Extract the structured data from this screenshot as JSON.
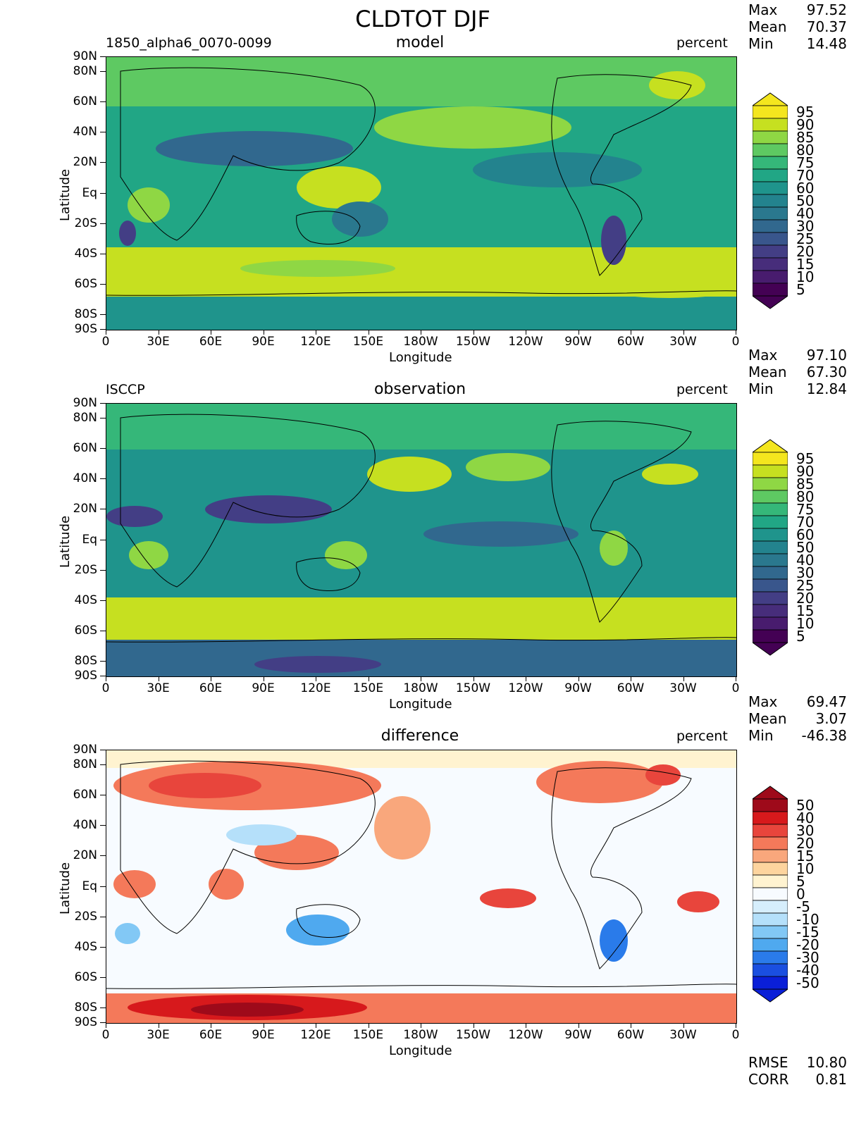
{
  "title": "CLDTOT DJF",
  "axes": {
    "lat_ticks": [
      "90N",
      "80N",
      "60N",
      "40N",
      "20N",
      "Eq",
      "20S",
      "40S",
      "60S",
      "80S",
      "90S"
    ],
    "lon_ticks": [
      "0",
      "30E",
      "60E",
      "90E",
      "120E",
      "150E",
      "180W",
      "150W",
      "120W",
      "90W",
      "60W",
      "30W",
      "0"
    ],
    "xlabel": "Longitude",
    "ylabel": "Latitude"
  },
  "panels": [
    {
      "case": "1850_alpha6_0070-0099",
      "title": "model",
      "units": "percent",
      "stats": {
        "max_label": "Max",
        "max": "97.52",
        "mean_label": "Mean",
        "mean": "70.37",
        "min_label": "Min",
        "min": "14.48"
      },
      "colorbar": [
        "95",
        "90",
        "85",
        "80",
        "75",
        "70",
        "60",
        "50",
        "40",
        "30",
        "25",
        "20",
        "15",
        "10",
        "5"
      ]
    },
    {
      "case": "ISCCP",
      "title": "observation",
      "units": "percent",
      "stats": {
        "max_label": "Max",
        "max": "97.10",
        "mean_label": "Mean",
        "mean": "67.30",
        "min_label": "Min",
        "min": "12.84"
      },
      "colorbar": [
        "95",
        "90",
        "85",
        "80",
        "75",
        "70",
        "60",
        "50",
        "40",
        "30",
        "25",
        "20",
        "15",
        "10",
        "5"
      ]
    },
    {
      "case": "",
      "title": "difference",
      "units": "percent",
      "stats": {
        "max_label": "Max",
        "max": "69.47",
        "mean_label": "Mean",
        "mean": "3.07",
        "min_label": "Min",
        "min": "-46.38"
      },
      "colorbar": [
        "50",
        "40",
        "30",
        "20",
        "15",
        "10",
        "5",
        "0",
        "-5",
        "-10",
        "-15",
        "-20",
        "-30",
        "-40",
        "-50"
      ],
      "metrics": {
        "rmse_label": "RMSE",
        "rmse": "10.80",
        "corr_label": "CORR",
        "corr": "0.81"
      }
    }
  ],
  "colors": {
    "seq": [
      "#f4e61e",
      "#c6e020",
      "#8fd744",
      "#5ec962",
      "#35b779",
      "#21a685",
      "#1f948c",
      "#23838e",
      "#2a788e",
      "#31688e",
      "#39568c",
      "#433e85",
      "#472d7b",
      "#481c6e",
      "#440154"
    ],
    "div": [
      "#9e0a1a",
      "#d7191c",
      "#e8453c",
      "#f4795a",
      "#f9a77c",
      "#fdd49e",
      "#fff3d0",
      "#f7fbff",
      "#d6eefc",
      "#b5e0fa",
      "#82c8f5",
      "#4fa9ef",
      "#2a7bea",
      "#1a4fe0",
      "#0a1fd8"
    ]
  }
}
